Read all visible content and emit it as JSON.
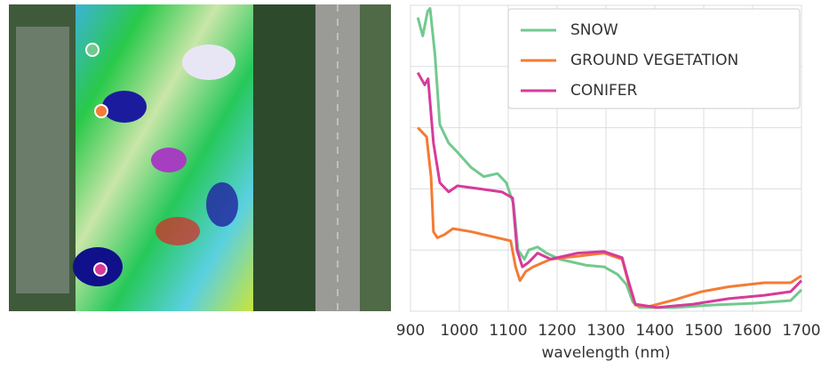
{
  "chart_data": {
    "type": "line",
    "xlabel": "wavelength (nm)",
    "xlim": [
      900,
      1700
    ],
    "xticks": [
      900,
      1000,
      1100,
      1200,
      1300,
      1400,
      1500,
      1600,
      1700
    ],
    "ylim": [
      0,
      1
    ],
    "yticks": [
      0,
      0.2,
      0.4,
      0.6,
      0.8,
      1.0
    ],
    "grid": true,
    "legend": "upper right",
    "series": [
      {
        "name": "SNOW",
        "color": "#72c98f",
        "x": [
          915,
          925,
          935,
          940,
          950,
          960,
          978,
          996,
          1024,
          1050,
          1078,
          1096,
          1111,
          1120,
          1133,
          1142,
          1160,
          1178,
          1205,
          1260,
          1296,
          1324,
          1342,
          1355,
          1369,
          1442,
          1515,
          1605,
          1678,
          1700
        ],
        "values": [
          0.96,
          0.9,
          0.98,
          0.99,
          0.84,
          0.61,
          0.55,
          0.52,
          0.47,
          0.44,
          0.45,
          0.42,
          0.35,
          0.2,
          0.17,
          0.2,
          0.21,
          0.19,
          0.17,
          0.15,
          0.145,
          0.12,
          0.087,
          0.03,
          0.012,
          0.012,
          0.02,
          0.026,
          0.035,
          0.07
        ]
      },
      {
        "name": "GROUND VEGETATION",
        "color": "#f47b35",
        "x": [
          915,
          933,
          942,
          947,
          955,
          969,
          987,
          1024,
          1078,
          1105,
          1115,
          1124,
          1136,
          1151,
          1187,
          1242,
          1296,
          1333,
          1347,
          1360,
          1387,
          1442,
          1496,
          1551,
          1624,
          1678,
          1700
        ],
        "values": [
          0.6,
          0.57,
          0.44,
          0.26,
          0.24,
          0.25,
          0.27,
          0.26,
          0.24,
          0.23,
          0.145,
          0.1,
          0.13,
          0.145,
          0.17,
          0.18,
          0.19,
          0.17,
          0.087,
          0.02,
          0.015,
          0.038,
          0.064,
          0.08,
          0.093,
          0.093,
          0.116
        ]
      },
      {
        "name": "CONIFER",
        "color": "#d63b9a",
        "x": [
          915,
          929,
          936,
          947,
          960,
          978,
          996,
          1042,
          1087,
          1109,
          1118,
          1129,
          1142,
          1160,
          1187,
          1242,
          1296,
          1333,
          1347,
          1360,
          1405,
          1478,
          1551,
          1624,
          1678,
          1700
        ],
        "values": [
          0.78,
          0.74,
          0.76,
          0.55,
          0.42,
          0.39,
          0.41,
          0.4,
          0.39,
          0.37,
          0.2,
          0.145,
          0.16,
          0.19,
          0.17,
          0.19,
          0.195,
          0.175,
          0.093,
          0.023,
          0.012,
          0.023,
          0.041,
          0.052,
          0.064,
          0.1
        ]
      }
    ]
  }
}
